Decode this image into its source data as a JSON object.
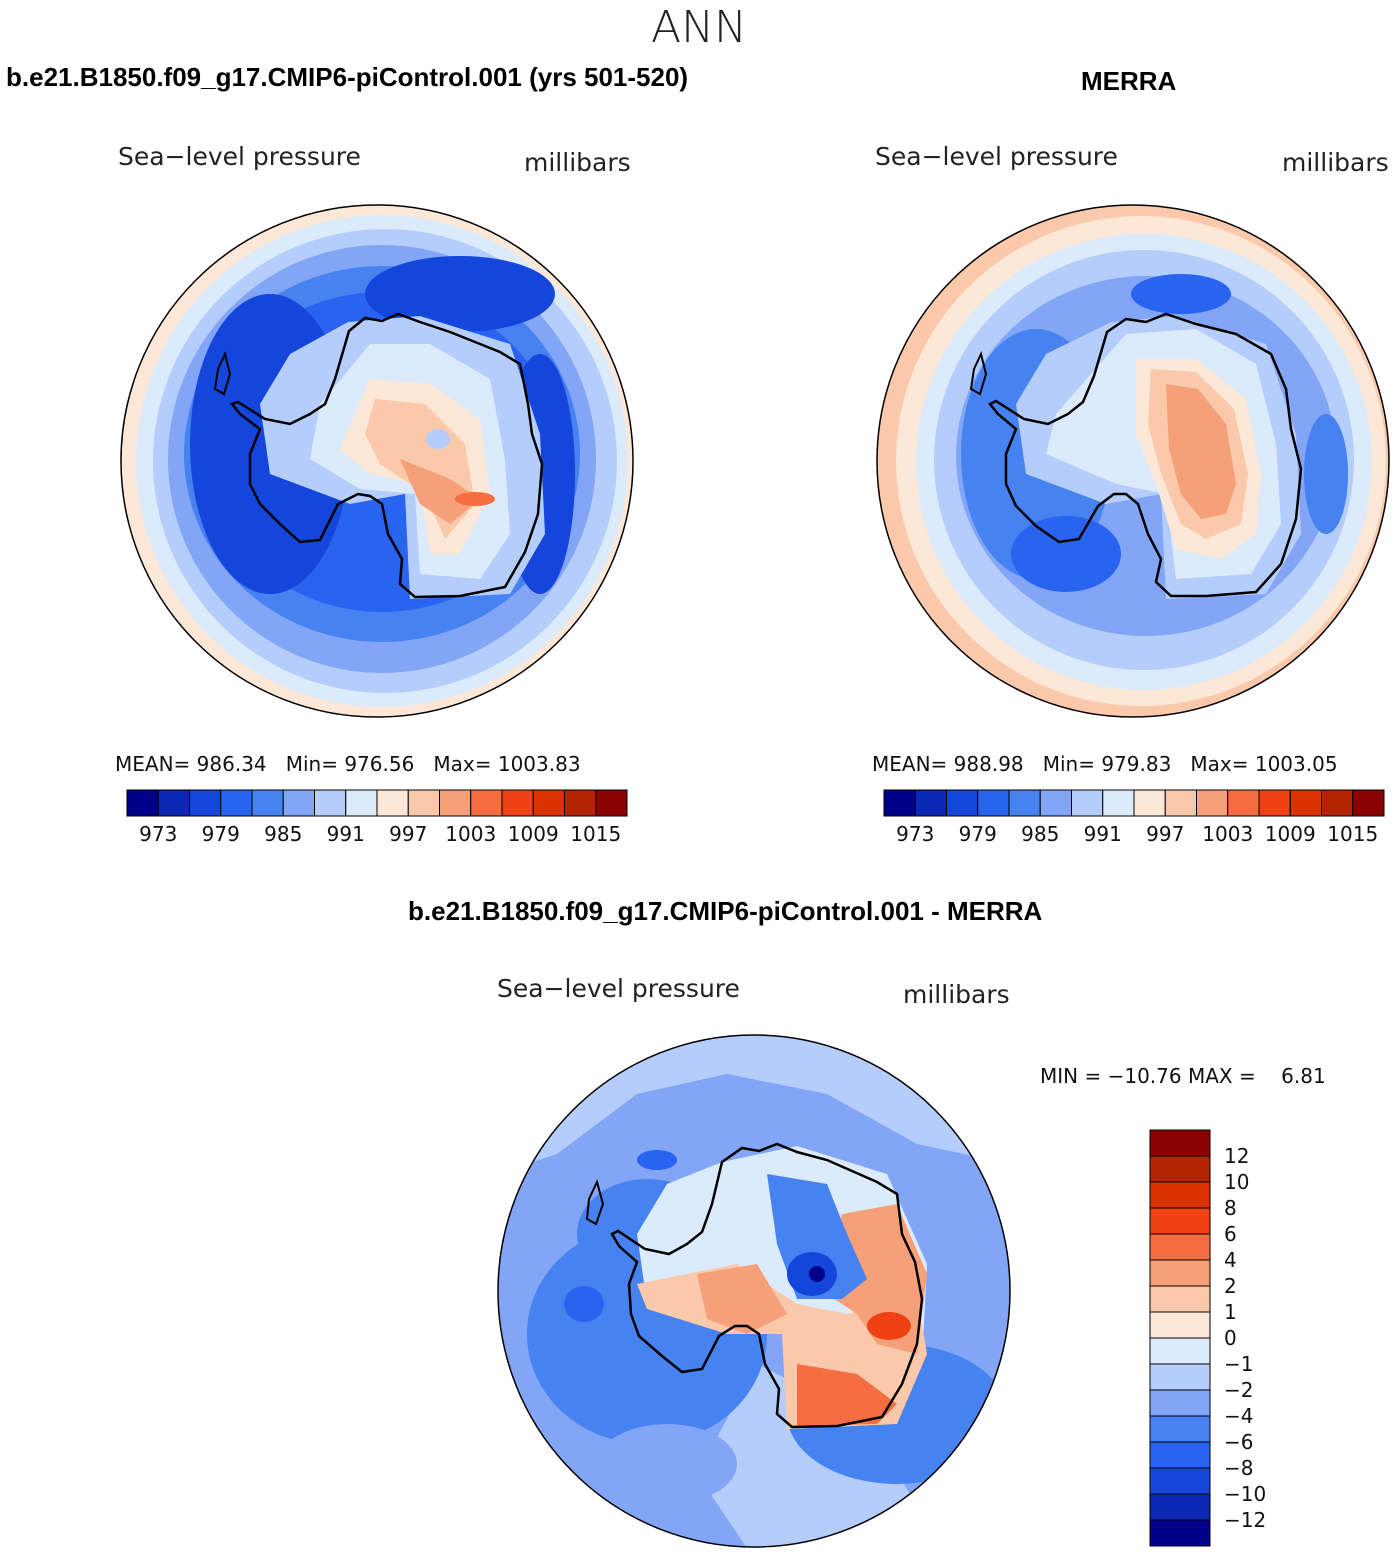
{
  "season": "ANN",
  "panels": [
    {
      "id": "model",
      "title": "b.e21.B1850.f09_g17.CMIP6-piControl.001 (yrs 501-520)",
      "variable": "Sea−level  pressure",
      "units": "millibars",
      "stats": {
        "mean": "986.34",
        "min": "976.56",
        "max": "1003.83"
      }
    },
    {
      "id": "obs",
      "title": "MERRA",
      "variable": "Sea−level  pressure",
      "units": "millibars",
      "stats": {
        "mean": "988.98",
        "min": "979.83",
        "max": "1003.05"
      }
    },
    {
      "id": "diff",
      "title": "b.e21.B1850.f09_g17.CMIP6-piControl.001 - MERRA",
      "variable": "Sea−level  pressure",
      "units": "millibars",
      "stats": {
        "min": "−10.76",
        "max": "6.81"
      }
    }
  ],
  "labels": {
    "mean": "MEAN=",
    "min": "Min=",
    "max": "Max=",
    "MIN": "MIN =",
    "MAX": "MAX ="
  },
  "colorbar_field": {
    "ticks": [
      "973",
      "979",
      "985",
      "991",
      "997",
      "1003",
      "1009",
      "1015"
    ],
    "colors": [
      "#00008b",
      "#0a28b4",
      "#1446dc",
      "#2864f0",
      "#4682f0",
      "#82a5f5",
      "#b4cdfa",
      "#dcebfc",
      "#fde8d8",
      "#fac8aa",
      "#f5a078",
      "#f56e41",
      "#f04114",
      "#dc3200",
      "#b42300",
      "#8b0000"
    ]
  },
  "colorbar_diff": {
    "ticks": [
      "12",
      "10",
      "8",
      "6",
      "4",
      "2",
      "1",
      "0",
      "−1",
      "−2",
      "−4",
      "−6",
      "−8",
      "−10",
      "−12"
    ],
    "colors": [
      "#8b0000",
      "#b42300",
      "#dc3200",
      "#f04114",
      "#f56e41",
      "#f5a078",
      "#fac8aa",
      "#fde8d8",
      "#dcebfc",
      "#b4cdfa",
      "#82a5f5",
      "#4682f0",
      "#2864f0",
      "#1446dc",
      "#0a28b4",
      "#00008b"
    ]
  }
}
